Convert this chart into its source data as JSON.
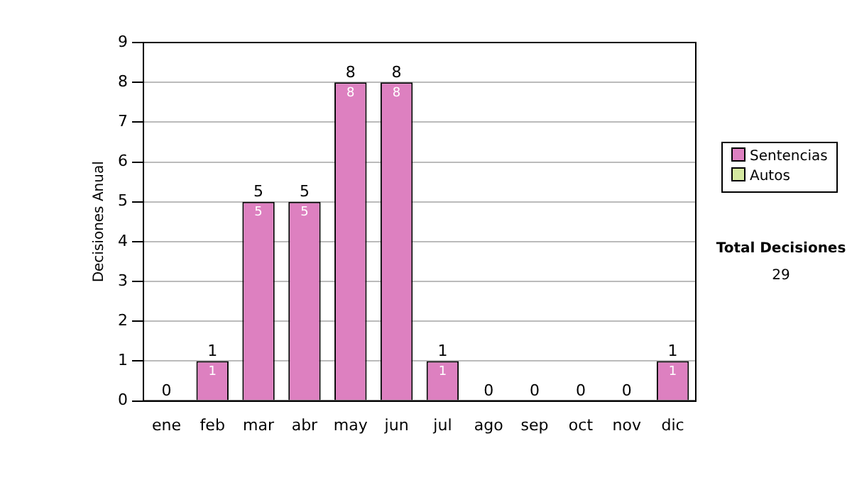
{
  "chart_data": {
    "type": "bar",
    "ylabel": "Decisiones Anual",
    "categories": [
      "ene",
      "feb",
      "mar",
      "abr",
      "may",
      "jun",
      "jul",
      "ago",
      "sep",
      "oct",
      "nov",
      "dic"
    ],
    "series": [
      {
        "name": "Sentencias",
        "color": "#dd80c0",
        "values": [
          0,
          1,
          5,
          5,
          8,
          8,
          1,
          0,
          0,
          0,
          0,
          1
        ],
        "value_labels": [
          null,
          "1",
          "5",
          "5",
          "8",
          "8",
          "1",
          null,
          null,
          null,
          null,
          "1"
        ]
      },
      {
        "name": "Autos",
        "color": "#d4e8a0",
        "values": [
          0,
          0,
          0,
          0,
          0,
          0,
          0,
          0,
          0,
          0,
          0,
          0
        ]
      }
    ],
    "stacked": true,
    "totals": [
      "0",
      "1",
      "5",
      "5",
      "8",
      "8",
      "1",
      "0",
      "0",
      "0",
      "0",
      "1"
    ],
    "ylim": [
      0,
      9
    ],
    "yticks": [
      0,
      1,
      2,
      3,
      4,
      5,
      6,
      7,
      8,
      9
    ],
    "grid": "y",
    "legend": "right",
    "annotations": [
      "Total Decisiones",
      "29"
    ]
  }
}
